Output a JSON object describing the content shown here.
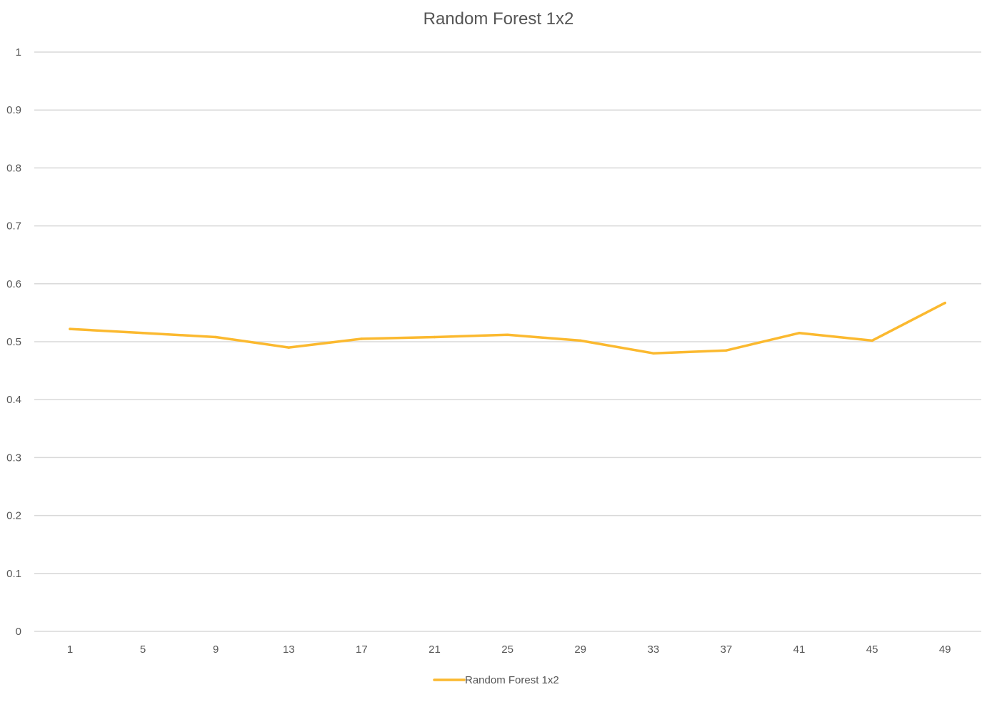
{
  "chart_data": {
    "type": "line",
    "title": "Random Forest 1x2",
    "xlabel": "",
    "ylabel": "",
    "categories": [
      "1",
      "5",
      "9",
      "13",
      "17",
      "21",
      "25",
      "29",
      "33",
      "37",
      "41",
      "45",
      "49"
    ],
    "ylim": [
      0,
      1
    ],
    "yticks": [
      "0",
      "0.1",
      "0.2",
      "0.3",
      "0.4",
      "0.5",
      "0.6",
      "0.7",
      "0.8",
      "0.9",
      "1"
    ],
    "grid": true,
    "legend_position": "bottom",
    "series": [
      {
        "name": "Random Forest 1x2",
        "color": "#FBB92F",
        "values": [
          0.522,
          0.515,
          0.508,
          0.49,
          0.505,
          0.508,
          0.512,
          0.502,
          0.48,
          0.485,
          0.515,
          0.502,
          0.567
        ]
      }
    ]
  }
}
